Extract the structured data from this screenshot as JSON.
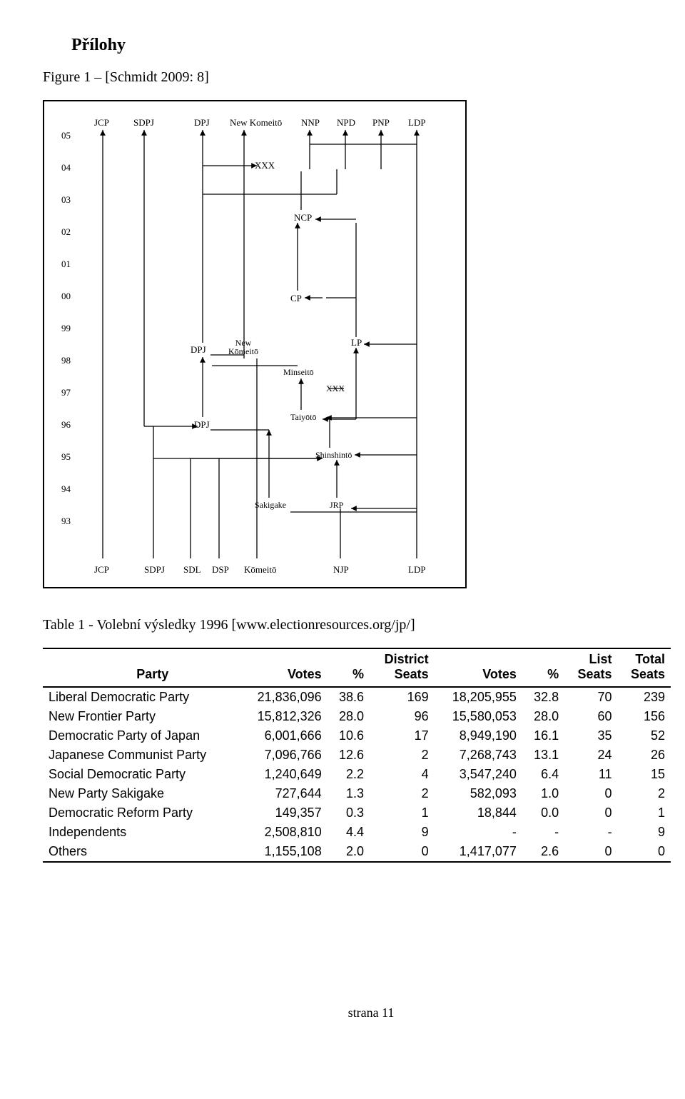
{
  "heading": "Přílohy",
  "figure_caption": "Figure 1 – [Schmidt 2009: 8]",
  "table_caption": "Table 1 - Volební výsledky 1996 [www.electionresources.org/jp/]",
  "footer": "strana 11",
  "diagram": {
    "y_labels": [
      "05",
      "04",
      "03",
      "02",
      "01",
      "00",
      "99",
      "98",
      "97",
      "96",
      "95",
      "94",
      "93"
    ],
    "top_labels": [
      "JCP",
      "SDPJ",
      "DPJ",
      "New Komeitō",
      "NNP",
      "NPD",
      "PNP",
      "LDP"
    ],
    "bottom_labels": [
      "JCP",
      "SDPJ",
      "SDL",
      "DSP",
      "Kōmeitō",
      "NJP",
      "LDP"
    ],
    "mid_labels": {
      "xxx_top": "XXX",
      "ncp": "NCP",
      "cp": "CP",
      "dpj98": "DPJ",
      "new_komeito98": "New\nKōmeitō",
      "lp": "LP",
      "minseito": "Minseitō",
      "xxx97": "XXX",
      "taiyoto": "Taiyōtō",
      "dpj96": "DPJ",
      "shinshinto": "Shinshintō",
      "sakigake": "Sakigake",
      "jrp": "JRP"
    }
  },
  "table": {
    "columns": [
      "Party",
      "Votes",
      "%",
      "District\nSeats",
      "Votes",
      "%",
      "List\nSeats",
      "Total\nSeats"
    ],
    "rows": [
      [
        "Liberal Democratic Party",
        "21,836,096",
        "38.6",
        "169",
        "18,205,955",
        "32.8",
        "70",
        "239"
      ],
      [
        "New Frontier Party",
        "15,812,326",
        "28.0",
        "96",
        "15,580,053",
        "28.0",
        "60",
        "156"
      ],
      [
        "Democratic Party of Japan",
        "6,001,666",
        "10.6",
        "17",
        "8,949,190",
        "16.1",
        "35",
        "52"
      ],
      [
        "Japanese Communist Party",
        "7,096,766",
        "12.6",
        "2",
        "7,268,743",
        "13.1",
        "24",
        "26"
      ],
      [
        "Social Democratic Party",
        "1,240,649",
        "2.2",
        "4",
        "3,547,240",
        "6.4",
        "11",
        "15"
      ],
      [
        "New Party Sakigake",
        "727,644",
        "1.3",
        "2",
        "582,093",
        "1.0",
        "0",
        "2"
      ],
      [
        "Democratic Reform Party",
        "149,357",
        "0.3",
        "1",
        "18,844",
        "0.0",
        "0",
        "1"
      ],
      [
        "Independents",
        "2,508,810",
        "4.4",
        "9",
        "-",
        "-",
        "-",
        "9"
      ],
      [
        "Others",
        "1,155,108",
        "2.0",
        "0",
        "1,417,077",
        "2.6",
        "0",
        "0"
      ]
    ]
  }
}
